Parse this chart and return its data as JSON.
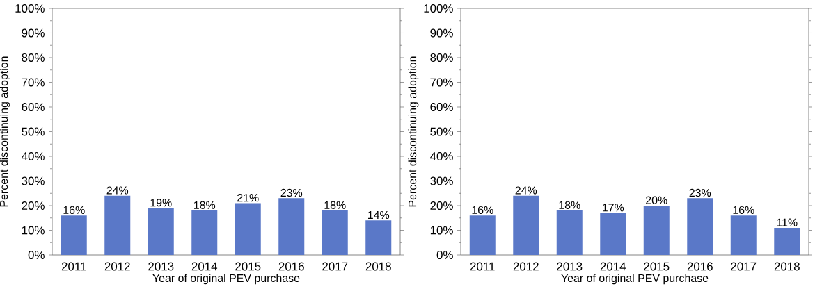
{
  "chart_data": [
    {
      "type": "bar",
      "xlabel": "Year of original PEV purchase",
      "ylabel": "Percent discontinuing adoption",
      "categories": [
        "2011",
        "2012",
        "2013",
        "2014",
        "2015",
        "2016",
        "2017",
        "2018"
      ],
      "values": [
        16,
        24,
        19,
        18,
        21,
        23,
        18,
        14
      ],
      "value_labels": [
        "16%",
        "24%",
        "19%",
        "18%",
        "21%",
        "23%",
        "18%",
        "14%"
      ],
      "color": "#5a78c8",
      "ylim": [
        0,
        100
      ],
      "yticks": [
        {
          "value": 0,
          "label": "0%"
        },
        {
          "value": 10,
          "label": "10%"
        },
        {
          "value": 20,
          "label": "20%"
        },
        {
          "value": 30,
          "label": "30%"
        },
        {
          "value": 40,
          "label": "40%"
        },
        {
          "value": 50,
          "label": "50%"
        },
        {
          "value": 60,
          "label": "60%"
        },
        {
          "value": 70,
          "label": "70%"
        },
        {
          "value": 80,
          "label": "80%"
        },
        {
          "value": 90,
          "label": "90%"
        },
        {
          "value": 100,
          "label": "100%"
        }
      ]
    },
    {
      "type": "bar",
      "xlabel": "Year of original PEV purchase",
      "ylabel": "Percent discontinuing adoption",
      "categories": [
        "2011",
        "2012",
        "2013",
        "2014",
        "2015",
        "2016",
        "2017",
        "2018"
      ],
      "values": [
        16,
        24,
        18,
        17,
        20,
        23,
        16,
        11
      ],
      "value_labels": [
        "16%",
        "24%",
        "18%",
        "17%",
        "20%",
        "23%",
        "16%",
        "11%"
      ],
      "color": "#5a78c8",
      "ylim": [
        0,
        100
      ],
      "yticks": [
        {
          "value": 0,
          "label": "0%"
        },
        {
          "value": 10,
          "label": "10%"
        },
        {
          "value": 20,
          "label": "20%"
        },
        {
          "value": 30,
          "label": "30%"
        },
        {
          "value": 40,
          "label": "40%"
        },
        {
          "value": 50,
          "label": "50%"
        },
        {
          "value": 60,
          "label": "60%"
        },
        {
          "value": 70,
          "label": "70%"
        },
        {
          "value": 80,
          "label": "80%"
        },
        {
          "value": 90,
          "label": "90%"
        },
        {
          "value": 100,
          "label": "100%"
        }
      ]
    }
  ]
}
